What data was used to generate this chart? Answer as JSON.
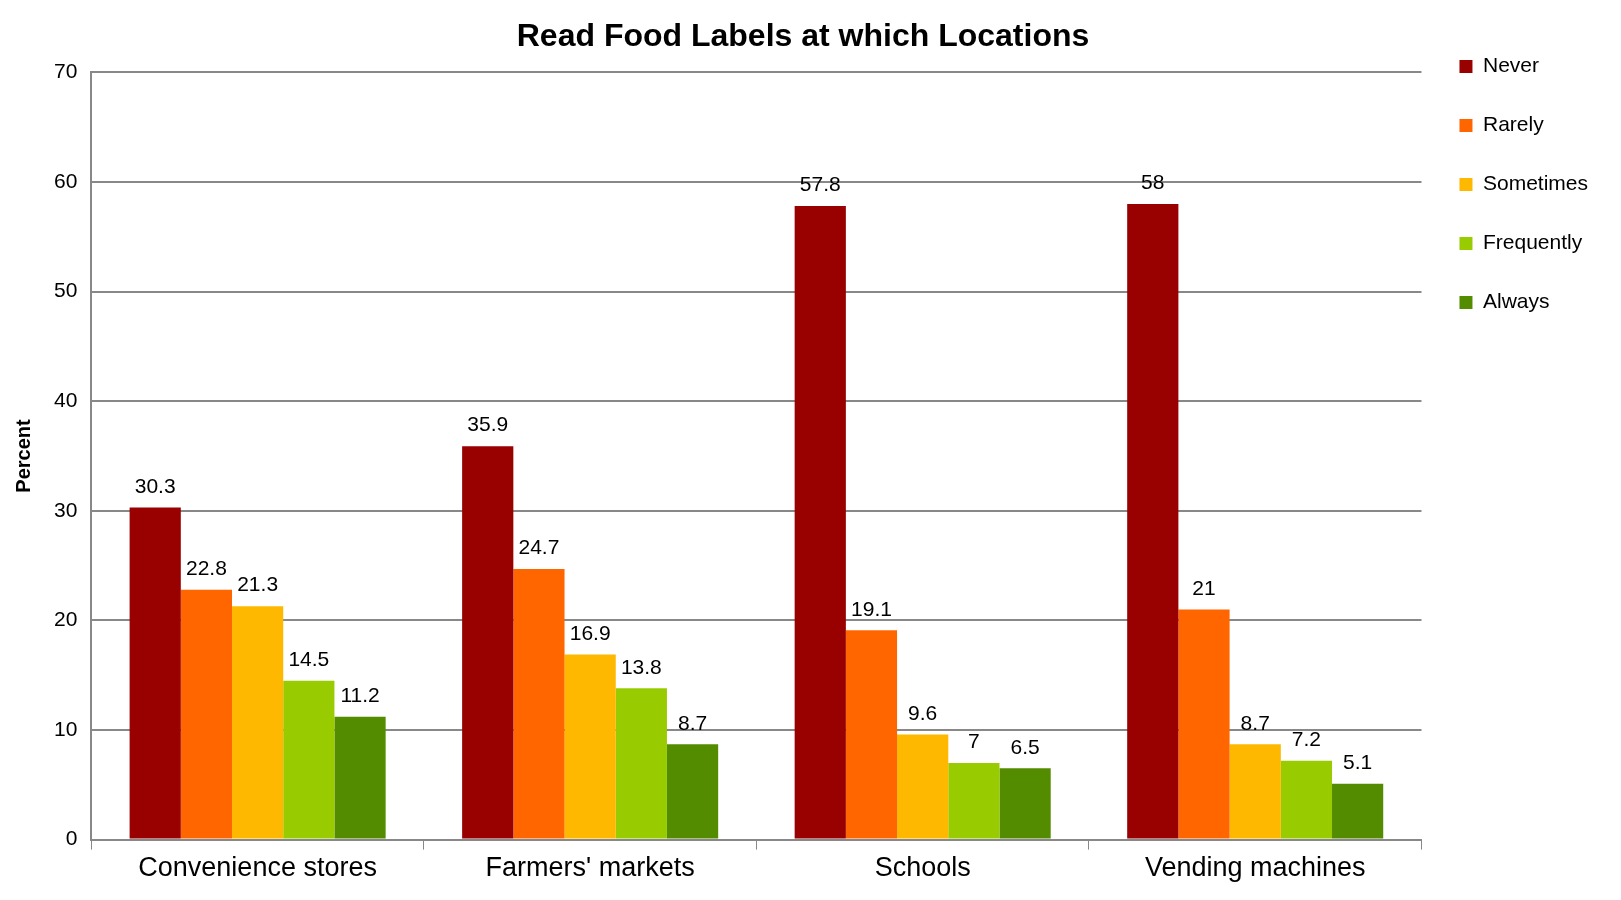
{
  "chart_data": {
    "type": "bar",
    "title": "Read Food Labels at which Locations",
    "ylabel": "Percent",
    "categories": [
      "Convenience stores",
      "Farmers' markets",
      "Schools",
      "Vending machines"
    ],
    "series": [
      {
        "name": "Never",
        "color": "#990000",
        "values": [
          30.3,
          35.9,
          57.8,
          58
        ]
      },
      {
        "name": "Rarely",
        "color": "#ff6600",
        "values": [
          22.8,
          24.7,
          19.1,
          21
        ]
      },
      {
        "name": "Sometimes",
        "color": "#ffb800",
        "values": [
          21.3,
          16.9,
          9.6,
          8.7
        ]
      },
      {
        "name": "Frequently",
        "color": "#99cc00",
        "values": [
          14.5,
          13.8,
          7,
          7.2
        ]
      },
      {
        "name": "Always",
        "color": "#548c00",
        "values": [
          11.2,
          8.7,
          6.5,
          5.1
        ]
      }
    ],
    "ylim": [
      0,
      70
    ],
    "yticks": [
      0,
      10,
      20,
      30,
      40,
      50,
      60,
      70
    ],
    "grid": "y",
    "legend": "top right",
    "data_labels": true
  }
}
